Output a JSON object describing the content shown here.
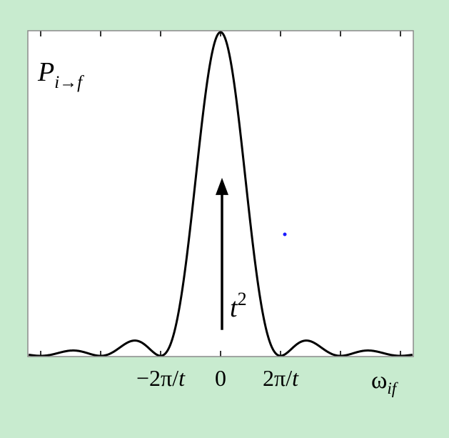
{
  "chart_data": {
    "type": "line",
    "ylabel": "P",
    "ylabel_sub": "i→f",
    "xlabel": "ω",
    "xlabel_sub": "if",
    "x_tick_labels": [
      {
        "x": -1,
        "label": "−2π/t"
      },
      {
        "x": 0,
        "label": "0"
      },
      {
        "x": 1,
        "label": "2π/t"
      }
    ],
    "xlim": [
      -3.2,
      3.2
    ],
    "ylim": [
      0,
      1
    ],
    "minor_ticks_x": [
      -3,
      -2,
      -1,
      0,
      1,
      2,
      3
    ],
    "series": [
      {
        "function": "sinc^2",
        "peak": 1,
        "zeros": [
          -3,
          -2,
          -1,
          1,
          2,
          3
        ]
      }
    ],
    "annotation": {
      "text": "t",
      "superscript": "2",
      "arrow_x": 0,
      "arrow_from_y": 0.08,
      "arrow_to_y": 0.55
    },
    "grid": false,
    "colors": {
      "background": "#c8ebcf",
      "plot": "#ffffff",
      "curve": "#000000",
      "marker": "#1a1aff"
    }
  }
}
